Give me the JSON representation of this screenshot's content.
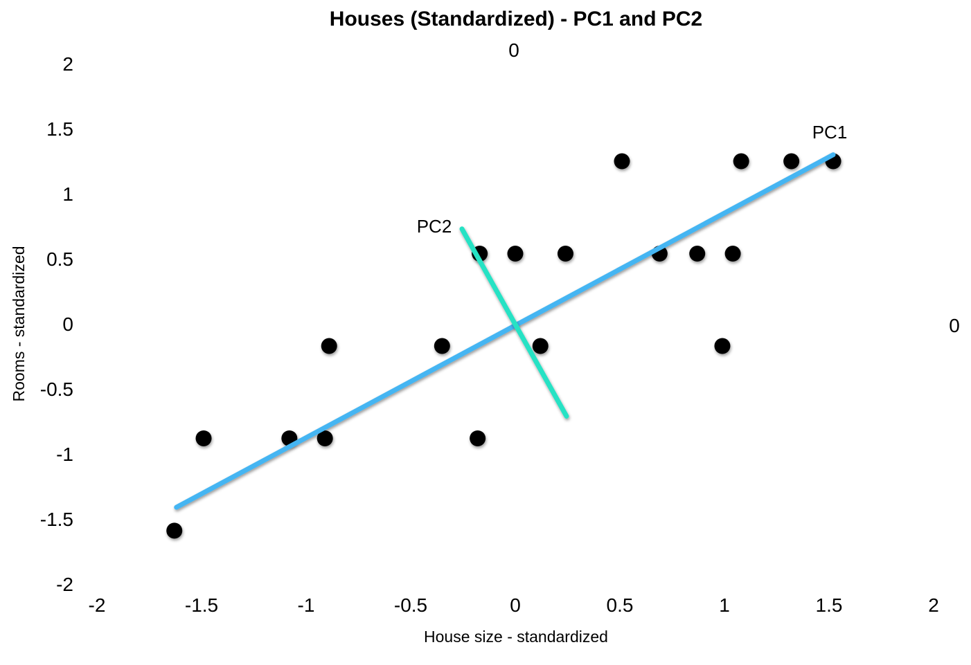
{
  "page": {
    "background": "#ffffff"
  },
  "chart_data": {
    "type": "scatter",
    "title": "Houses (Standardized) - PC1 and PC2",
    "xlabel": "House size - standardized",
    "ylabel": "Rooms - standardized",
    "xlim": [
      -2,
      2
    ],
    "ylim": [
      -2,
      2
    ],
    "grid": false,
    "legend": "none",
    "axis_color": "#000000",
    "point_color": "#000000",
    "x_ticks": [
      {
        "v": -2,
        "label": "-2"
      },
      {
        "v": -1.5,
        "label": "-1.5"
      },
      {
        "v": -1,
        "label": "-1"
      },
      {
        "v": -0.5,
        "label": "-0.5"
      },
      {
        "v": 0,
        "label": "0"
      },
      {
        "v": 0.5,
        "label": "0.5"
      },
      {
        "v": 1,
        "label": "1"
      },
      {
        "v": 1.5,
        "label": "1.5"
      },
      {
        "v": 2,
        "label": "2"
      }
    ],
    "y_ticks": [
      {
        "v": 2,
        "label": "2"
      },
      {
        "v": 1.5,
        "label": "1.5"
      },
      {
        "v": 1,
        "label": "1"
      },
      {
        "v": 0.5,
        "label": "0.5"
      },
      {
        "v": 0,
        "label": "0"
      },
      {
        "v": -0.5,
        "label": "-0.5"
      },
      {
        "v": -1,
        "label": "-1"
      },
      {
        "v": -1.5,
        "label": "-1.5"
      },
      {
        "v": -2,
        "label": "-2"
      }
    ],
    "axis_end_labels": {
      "top": "0",
      "right": "0"
    },
    "points": [
      {
        "x": 0.51,
        "y": 1.25
      },
      {
        "x": 1.08,
        "y": 1.25
      },
      {
        "x": 1.32,
        "y": 1.25
      },
      {
        "x": 1.52,
        "y": 1.25
      },
      {
        "x": -0.17,
        "y": 0.54
      },
      {
        "x": 0.0,
        "y": 0.54
      },
      {
        "x": 0.24,
        "y": 0.54
      },
      {
        "x": 0.69,
        "y": 0.54
      },
      {
        "x": 0.87,
        "y": 0.54
      },
      {
        "x": 1.04,
        "y": 0.54
      },
      {
        "x": -0.89,
        "y": -0.17
      },
      {
        "x": -0.35,
        "y": -0.17
      },
      {
        "x": 0.12,
        "y": -0.17
      },
      {
        "x": 0.99,
        "y": -0.17
      },
      {
        "x": -1.49,
        "y": -0.88
      },
      {
        "x": -1.08,
        "y": -0.88
      },
      {
        "x": -0.91,
        "y": -0.88
      },
      {
        "x": -0.18,
        "y": -0.88
      },
      {
        "x": -1.63,
        "y": -1.59
      }
    ],
    "pc1": {
      "label": "PC1",
      "color": "#44b5f2",
      "x1": -1.62,
      "y1": -1.41,
      "x2": 1.52,
      "y2": 1.3
    },
    "pc2": {
      "label": "PC2",
      "color": "#27e2c4",
      "x1": -0.255,
      "y1": 0.73,
      "x2": 0.245,
      "y2": -0.71
    }
  }
}
